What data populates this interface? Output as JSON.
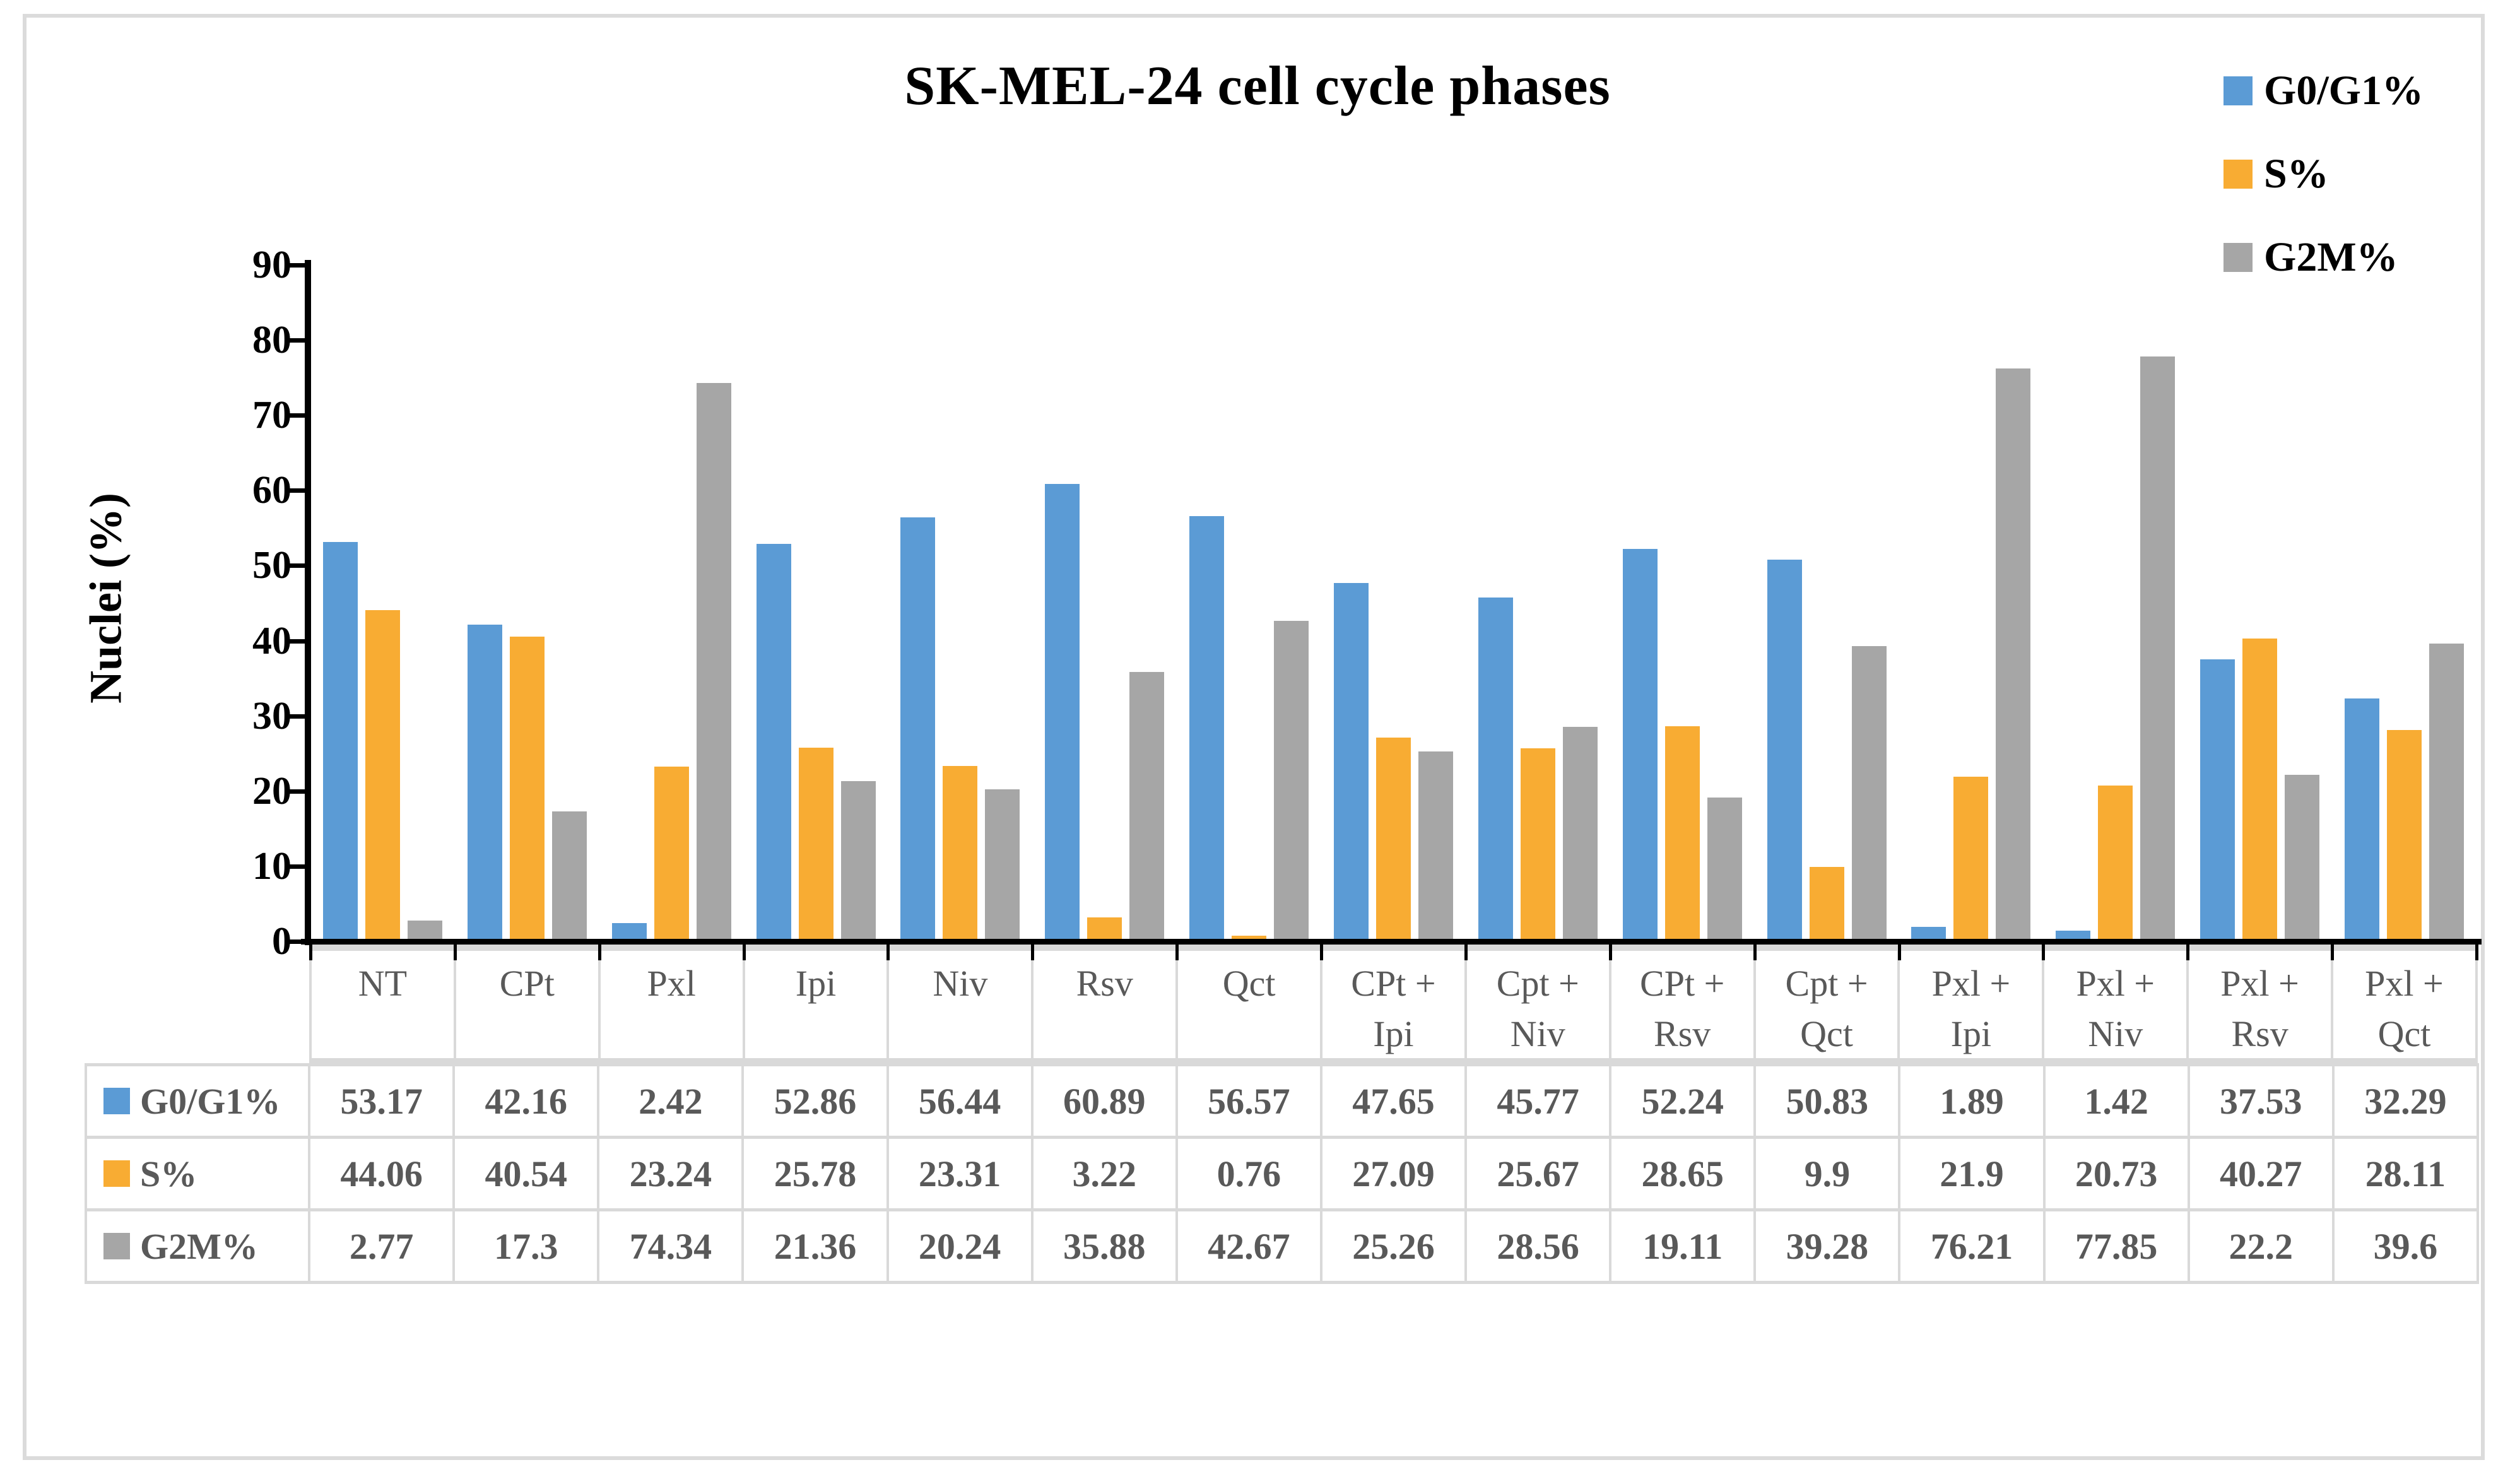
{
  "figure": {
    "title": "SK-MEL-24 cell cycle phases",
    "y_axis_title": "Nuclei (%)"
  },
  "colors": {
    "series_blue": "#5B9BD5",
    "series_orange": "#F8AC33",
    "series_gray": "#A6A6A6",
    "axis": "#000000",
    "table_border": "#D9D9D9",
    "table_text": "#595959",
    "frame_border": "#DBDBDB"
  },
  "chart_data": {
    "type": "bar",
    "title": "SK-MEL-24 cell cycle phases",
    "xlabel": "",
    "ylabel": "Nuclei (%)",
    "ylim": [
      0,
      90
    ],
    "ytick_step": 10,
    "yticks": [
      0,
      10,
      20,
      30,
      40,
      50,
      60,
      70,
      80,
      90
    ],
    "grid": false,
    "legend_position": "top-right",
    "data_table_shown": true,
    "categories": [
      "NT",
      "CPt",
      "Pxl",
      "Ipi",
      "Niv",
      "Rsv",
      "Qct",
      "CPt +\nIpi",
      "Cpt +\nNiv",
      "CPt +\nRsv",
      "Cpt +\nQct",
      "Pxl +\nIpi",
      "Pxl +\nNiv",
      "Pxl +\nRsv",
      "Pxl +\nQct"
    ],
    "series": [
      {
        "name": "G0/G1%",
        "color": "#5B9BD5",
        "values": [
          53.17,
          42.16,
          2.42,
          52.86,
          56.44,
          60.89,
          56.57,
          47.65,
          45.77,
          52.24,
          50.83,
          1.89,
          1.42,
          37.53,
          32.29
        ]
      },
      {
        "name": "S%",
        "color": "#F8AC33",
        "values": [
          44.06,
          40.54,
          23.24,
          25.78,
          23.31,
          3.22,
          0.76,
          27.09,
          25.67,
          28.65,
          9.9,
          21.9,
          20.73,
          40.27,
          28.11
        ]
      },
      {
        "name": "G2M%",
        "color": "#A6A6A6",
        "values": [
          2.77,
          17.3,
          74.34,
          21.36,
          20.24,
          35.88,
          42.67,
          25.26,
          28.56,
          19.11,
          39.28,
          76.21,
          77.85,
          22.2,
          39.6
        ]
      }
    ]
  }
}
